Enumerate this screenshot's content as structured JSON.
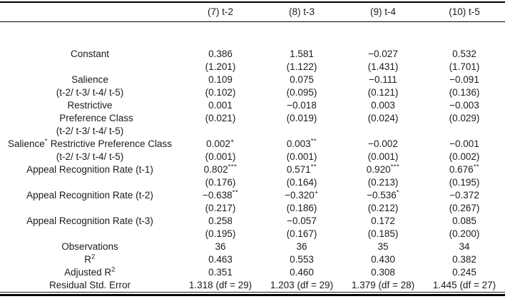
{
  "colors": {
    "background": "#ffffff",
    "text": "#1b1b1b",
    "rule": "#000000"
  },
  "table": {
    "header": {
      "label_col": "",
      "columns": [
        "(7) t-2",
        "(8) t-3",
        "(9) t-4",
        "(10) t-5"
      ]
    },
    "rows": [
      {
        "label": "Constant",
        "values": [
          "0.386",
          "1.581",
          "−0.027",
          "0.532"
        ]
      },
      {
        "label": "",
        "values": [
          "(1.201)",
          "(1.122)",
          "(1.431)",
          "(1.701)"
        ]
      },
      {
        "label": "Salience",
        "values": [
          "0.109",
          "0.075",
          "−0.111",
          "−0.091"
        ]
      },
      {
        "label": "(t-2/ t-3/ t-4/ t-5)",
        "values": [
          "(0.102)",
          "(0.095)",
          "(0.121)",
          "(0.136)"
        ]
      },
      {
        "label": "Restrictive",
        "values": [
          "0.001",
          "−0.018",
          "0.003",
          "−0.003"
        ]
      },
      {
        "label": "Preference Class",
        "indent": true,
        "values": [
          "(0.021)",
          "(0.019)",
          "(0.024)",
          "(0.029)"
        ]
      },
      {
        "label": "(t-2/ t-3/ t-4/ t-5)",
        "values": [
          "",
          "",
          "",
          ""
        ]
      },
      {
        "label": "Salience^{*} Restrictive Preference Class",
        "values": [
          "0.002^{+}",
          "0.003^{**}",
          "−0.002",
          "−0.001"
        ]
      },
      {
        "label": "(t-2/ t-3/ t-4/ t-5)",
        "values": [
          "(0.001)",
          "(0.001)",
          "(0.001)",
          "(0.002)"
        ]
      },
      {
        "label": "Appeal Recognition Rate (t-1)",
        "values": [
          "0.802^{***}",
          "0.571^{**}",
          "0.920^{***}",
          "0.676^{**}"
        ]
      },
      {
        "label": "",
        "values": [
          "(0.176)",
          "(0.164)",
          "(0.213)",
          "(0.195)"
        ]
      },
      {
        "label": "Appeal Recognition Rate (t-2)",
        "values": [
          "−0.638^{**}",
          "−0.320^{+}",
          "−0.536^{*}",
          "−0.372"
        ]
      },
      {
        "label": "",
        "values": [
          "(0.217)",
          "(0.186)",
          "(0.212)",
          "(0.267)"
        ]
      },
      {
        "label": "Appeal Recognition Rate (t-3)",
        "values": [
          "0.258",
          "−0.057",
          "0.172",
          "0.085"
        ]
      },
      {
        "label": "",
        "values": [
          "(0.195)",
          "(0.167)",
          "(0.185)",
          "(0.200)"
        ]
      },
      {
        "label": "Observations",
        "values": [
          "36",
          "36",
          "35",
          "34"
        ]
      },
      {
        "label": "R^{2}",
        "values": [
          "0.463",
          "0.553",
          "0.430",
          "0.382"
        ]
      },
      {
        "label": "Adjusted R^{2}",
        "values": [
          "0.351",
          "0.460",
          "0.308",
          "0.245"
        ]
      },
      {
        "label": "Residual Std. Error",
        "values": [
          "1.318 (df = 29)",
          "1.203 (df = 29)",
          "1.379 (df = 28)",
          "1.445 (df = 27)"
        ]
      }
    ]
  }
}
